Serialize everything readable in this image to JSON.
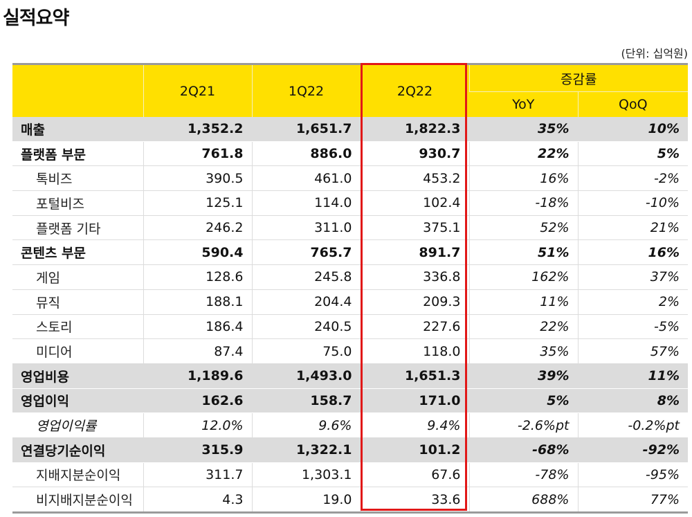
{
  "title": "실적요약",
  "unit": "(단위: 십억원)",
  "header": {
    "blank": "",
    "col_2q21": "2Q21",
    "col_1q22": "1Q22",
    "col_2q22": "2Q22",
    "change_group": "증감률",
    "yoy": "YoY",
    "qoq": "QoQ"
  },
  "rows": [
    {
      "label": "매출",
      "v2q21": "1,352.2",
      "v1q22": "1,651.7",
      "v2q22": "1,822.3",
      "yoy": "35%",
      "qoq": "10%"
    },
    {
      "label": "플랫폼 부문",
      "v2q21": "761.8",
      "v1q22": "886.0",
      "v2q22": "930.7",
      "yoy": "22%",
      "qoq": "5%"
    },
    {
      "label": "톡비즈",
      "v2q21": "390.5",
      "v1q22": "461.0",
      "v2q22": "453.2",
      "yoy": "16%",
      "qoq": "-2%"
    },
    {
      "label": "포털비즈",
      "v2q21": "125.1",
      "v1q22": "114.0",
      "v2q22": "102.4",
      "yoy": "-18%",
      "qoq": "-10%"
    },
    {
      "label": "플랫폼 기타",
      "v2q21": "246.2",
      "v1q22": "311.0",
      "v2q22": "375.1",
      "yoy": "52%",
      "qoq": "21%"
    },
    {
      "label": "콘텐츠 부문",
      "v2q21": "590.4",
      "v1q22": "765.7",
      "v2q22": "891.7",
      "yoy": "51%",
      "qoq": "16%"
    },
    {
      "label": "게임",
      "v2q21": "128.6",
      "v1q22": "245.8",
      "v2q22": "336.8",
      "yoy": "162%",
      "qoq": "37%"
    },
    {
      "label": "뮤직",
      "v2q21": "188.1",
      "v1q22": "204.4",
      "v2q22": "209.3",
      "yoy": "11%",
      "qoq": "2%"
    },
    {
      "label": "스토리",
      "v2q21": "186.4",
      "v1q22": "240.5",
      "v2q22": "227.6",
      "yoy": "22%",
      "qoq": "-5%"
    },
    {
      "label": "미디어",
      "v2q21": "87.4",
      "v1q22": "75.0",
      "v2q22": "118.0",
      "yoy": "35%",
      "qoq": "57%"
    },
    {
      "label": "영업비용",
      "v2q21": "1,189.6",
      "v1q22": "1,493.0",
      "v2q22": "1,651.3",
      "yoy": "39%",
      "qoq": "11%"
    },
    {
      "label": "영업이익",
      "v2q21": "162.6",
      "v1q22": "158.7",
      "v2q22": "171.0",
      "yoy": "5%",
      "qoq": "8%"
    },
    {
      "label": "영업이익률",
      "v2q21": "12.0%",
      "v1q22": "9.6%",
      "v2q22": "9.4%",
      "yoy": "-2.6%pt",
      "qoq": "-0.2%pt"
    },
    {
      "label": "연결당기순이익",
      "v2q21": "315.9",
      "v1q22": "1,322.1",
      "v2q22": "101.2",
      "yoy": "-68%",
      "qoq": "-92%"
    },
    {
      "label": "지배지분순이익",
      "v2q21": "311.7",
      "v1q22": "1,303.1",
      "v2q22": "67.6",
      "yoy": "-78%",
      "qoq": "-95%"
    },
    {
      "label": "비지배지분순이익",
      "v2q21": "4.3",
      "v1q22": "19.0",
      "v2q22": "33.6",
      "yoy": "688%",
      "qoq": "77%"
    }
  ],
  "colors": {
    "header_yellow": "#ffe000",
    "major_row_gray": "#dcdcdc",
    "highlight_red": "#e11818"
  }
}
